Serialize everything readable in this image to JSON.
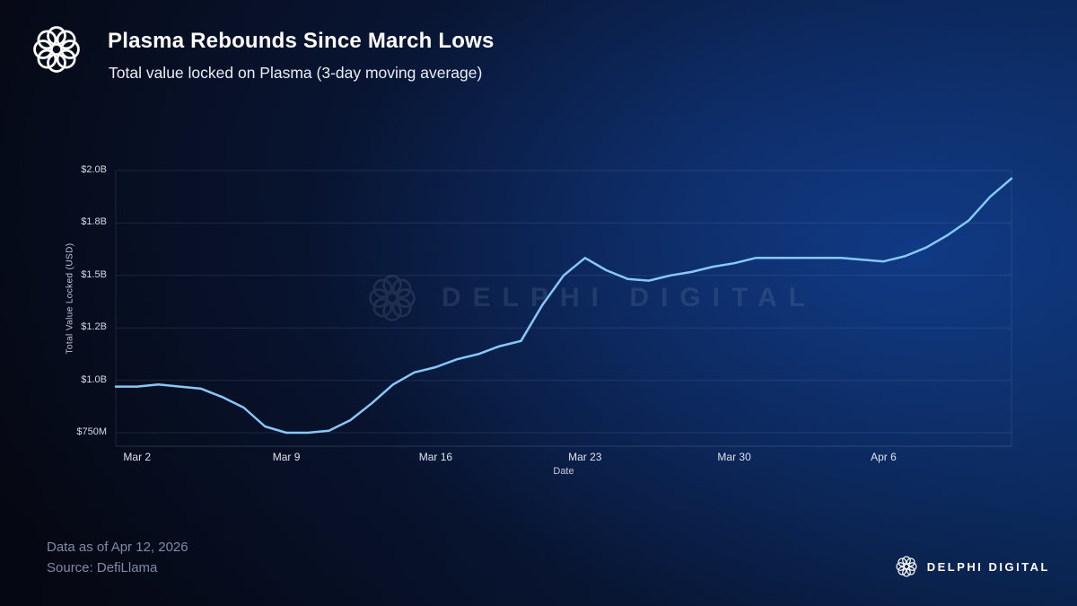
{
  "header": {
    "title": "Plasma Rebounds Since March Lows",
    "subtitle": "Total value locked on Plasma (3-day moving average)"
  },
  "watermark": {
    "text": "DELPHI DIGITAL"
  },
  "footer": {
    "data_as_of": "Data as of Apr 12, 2026",
    "source": "Source: DefiLlama",
    "brand": "DELPHI DIGITAL"
  },
  "colors": {
    "line": "#86c8f8",
    "grid": "rgba(160,180,220,0.14)",
    "axis": "rgba(160,180,220,0.22)",
    "tick_text": "#d3dbe9"
  },
  "chart_data": {
    "type": "line",
    "title": "Plasma Rebounds Since March Lows",
    "subtitle": "Total value locked on Plasma (3-day moving average)",
    "series_name": "Total Value Locked (3-day moving average)",
    "xlabel": "Date",
    "ylabel": "Total Value Locked (USD)",
    "unit": "USD billions",
    "ylim": [
      0.7,
      2.05
    ],
    "grid": "horizontal",
    "legend": "none",
    "y_ticks": [
      {
        "label": "$2.0B",
        "value": 2.0
      },
      {
        "label": "$1.8B",
        "value": 1.8
      },
      {
        "label": "$1.5B",
        "value": 1.5
      },
      {
        "label": "$1.2B",
        "value": 1.2
      },
      {
        "label": "$1.0B",
        "value": 1.0
      },
      {
        "label": "$750M",
        "value": 0.75
      }
    ],
    "x_ticks": [
      {
        "label": "Mar 2",
        "index": 1
      },
      {
        "label": "Mar 9",
        "index": 8
      },
      {
        "label": "Mar 16",
        "index": 15
      },
      {
        "label": "Mar 23",
        "index": 22
      },
      {
        "label": "Mar 30",
        "index": 29
      },
      {
        "label": "Apr 6",
        "index": 36
      }
    ],
    "x": [
      "Mar 1",
      "Mar 2",
      "Mar 3",
      "Mar 4",
      "Mar 5",
      "Mar 6",
      "Mar 7",
      "Mar 8",
      "Mar 9",
      "Mar 10",
      "Mar 11",
      "Mar 12",
      "Mar 13",
      "Mar 14",
      "Mar 15",
      "Mar 16",
      "Mar 17",
      "Mar 18",
      "Mar 19",
      "Mar 20",
      "Mar 21",
      "Mar 22",
      "Mar 23",
      "Mar 24",
      "Mar 25",
      "Mar 26",
      "Mar 27",
      "Mar 28",
      "Mar 29",
      "Mar 30",
      "Mar 31",
      "Apr 1",
      "Apr 2",
      "Apr 3",
      "Apr 4",
      "Apr 5",
      "Apr 6",
      "Apr 7",
      "Apr 8",
      "Apr 9",
      "Apr 10",
      "Apr 11",
      "Apr 12"
    ],
    "values": [
      0.97,
      0.97,
      0.98,
      0.97,
      0.96,
      0.92,
      0.87,
      0.78,
      0.75,
      0.75,
      0.76,
      0.81,
      0.89,
      0.98,
      1.03,
      1.05,
      1.08,
      1.1,
      1.13,
      1.15,
      1.33,
      1.5,
      1.6,
      1.53,
      1.48,
      1.47,
      1.5,
      1.52,
      1.55,
      1.57,
      1.6,
      1.6,
      1.6,
      1.6,
      1.6,
      1.59,
      1.58,
      1.61,
      1.66,
      1.73,
      1.81,
      1.9,
      1.97
    ]
  }
}
